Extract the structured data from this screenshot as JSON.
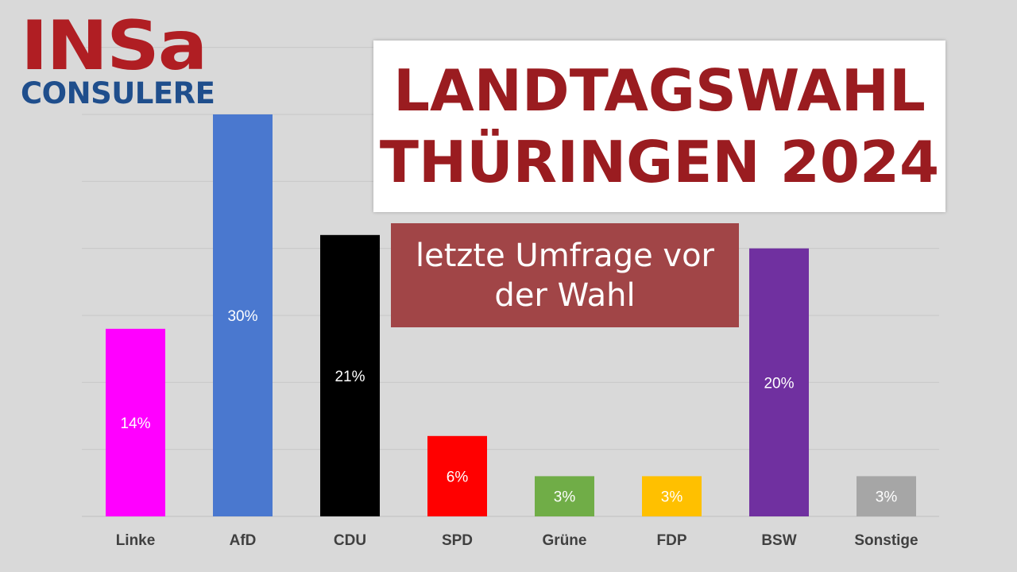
{
  "logo": {
    "top": "INSa",
    "bottom": "CONSULERE"
  },
  "title": {
    "line1": "LANDTAGSWAHL",
    "line2": "THÜRINGEN 2024"
  },
  "subtitle": {
    "line1": "letzte Umfrage vor",
    "line2": "der Wahl"
  },
  "chart_data": {
    "type": "bar",
    "categories": [
      "Linke",
      "AfD",
      "CDU",
      "SPD",
      "Grüne",
      "FDP",
      "BSW",
      "Sonstige"
    ],
    "values": [
      14,
      30,
      21,
      6,
      3,
      3,
      20,
      3
    ],
    "value_labels": [
      "14%",
      "30%",
      "21%",
      "6%",
      "3%",
      "3%",
      "20%",
      "3%"
    ],
    "colors": [
      "#ff00ff",
      "#4a78cf",
      "#000000",
      "#ff0000",
      "#70ad47",
      "#ffc000",
      "#7030a0",
      "#a6a6a6"
    ],
    "label_colors": [
      "#ffffff",
      "#ffffff",
      "#ffffff",
      "#ffffff",
      "#ffffff",
      "#ffffff",
      "#ffffff",
      "#ffffff"
    ],
    "ylim": [
      0,
      30
    ],
    "gridlines": true
  }
}
